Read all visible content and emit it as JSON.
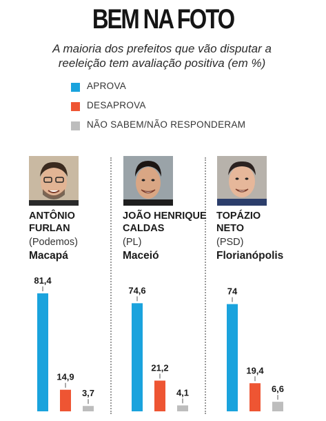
{
  "title": "BEM NA FOTO",
  "subtitle": "A maioria dos prefeitos que vão disputar a reeleição tem avaliação positiva (em %)",
  "legend": [
    {
      "label": "APROVA",
      "color": "#1aa3dd"
    },
    {
      "label": "DESAPROVA",
      "color": "#ee5533"
    },
    {
      "label": "NÃO SABEM/NÃO RESPONDERAM",
      "color": "#bdbdbd"
    }
  ],
  "mayors": [
    {
      "name_line1": "ANTÔNIO",
      "name_line2": "FURLAN",
      "party": "(Podemos)",
      "city": "Macapá",
      "photo_icon": "mayor-portrait-icon"
    },
    {
      "name_line1": "JOÃO HENRIQUE",
      "name_line2": "CALDAS",
      "party": "(PL)",
      "city": "Maceió",
      "photo_icon": "mayor-portrait-icon"
    },
    {
      "name_line1": "TOPÁZIO",
      "name_line2": "NETO",
      "party": "(PSD)",
      "city": "Florianópolis",
      "photo_icon": "mayor-portrait-icon"
    }
  ],
  "chart_data": {
    "type": "bar",
    "categories": [
      "Macapá",
      "Maceió",
      "Florianópolis"
    ],
    "series": [
      {
        "name": "APROVA",
        "values": [
          81.4,
          74.6,
          74
        ],
        "labels": [
          "81,4",
          "74,6",
          "74"
        ],
        "color": "#1aa3dd"
      },
      {
        "name": "DESAPROVA",
        "values": [
          14.9,
          21.2,
          19.4
        ],
        "labels": [
          "14,9",
          "21,2",
          "19,4"
        ],
        "color": "#ee5533"
      },
      {
        "name": "NÃO SABEM/NÃO RESPONDERAM",
        "values": [
          3.7,
          4.1,
          6.6
        ],
        "labels": [
          "3,7",
          "4,1",
          "6,6"
        ],
        "color": "#bdbdbd"
      }
    ],
    "ylim": [
      0,
      100
    ],
    "grid": false,
    "legend_position": "top-left"
  }
}
